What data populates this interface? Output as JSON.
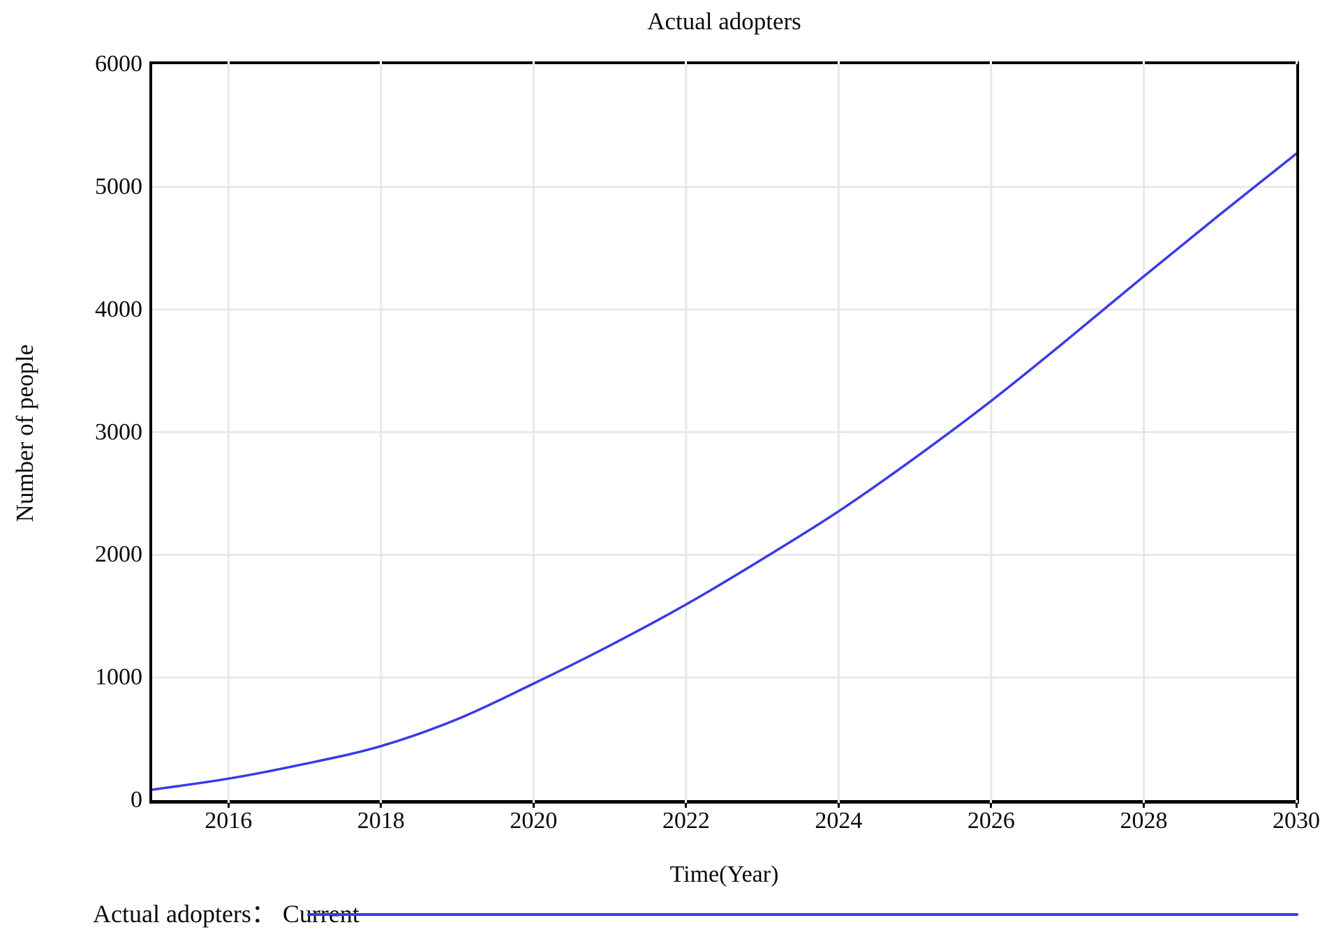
{
  "figure": {
    "background": "#ffffff",
    "text_color": "#0b0b0b"
  },
  "chart_data": {
    "type": "line",
    "title": "Actual adopters",
    "xlabel": "Time(Year)",
    "ylabel": "Number of people",
    "xlim": [
      2015,
      2030
    ],
    "ylim": [
      0,
      6000
    ],
    "x_ticks": [
      "2016",
      "2018",
      "2020",
      "2022",
      "2024",
      "2026",
      "2028",
      "2030"
    ],
    "y_ticks": [
      "0",
      "1000",
      "2000",
      "3000",
      "4000",
      "5000",
      "6000"
    ],
    "grid": true,
    "gridline_color": "#e8e8e8",
    "axis_color": "#000000",
    "legend_position": "bottom-left",
    "series": [
      {
        "name": "Actual adopters : Current",
        "color": "#3a3ae8",
        "x": [
          2015,
          2016,
          2017,
          2018,
          2019,
          2020,
          2021,
          2022,
          2023,
          2024,
          2025,
          2026,
          2027,
          2028,
          2029,
          2030
        ],
        "values": [
          85,
          175,
          295,
          440,
          660,
          950,
          1260,
          1595,
          1965,
          2355,
          2790,
          3255,
          3755,
          4270,
          4775,
          5270
        ]
      }
    ],
    "legend": {
      "entries": [
        {
          "label": "Actual adopters： Current",
          "color": "#3a3ae8"
        }
      ]
    }
  }
}
